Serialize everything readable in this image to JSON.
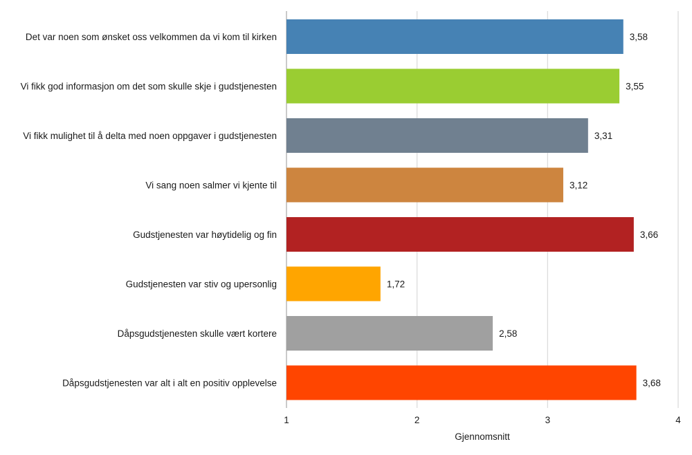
{
  "chart_data": {
    "type": "bar",
    "orientation": "horizontal",
    "categories": [
      "Det var noen som ønsket oss velkommen da vi kom til kirken",
      "Vi fikk god informasjon om det som skulle skje i gudstjenesten",
      "Vi fikk mulighet til å delta med noen oppgaver i gudstjenesten",
      "Vi sang noen salmer vi kjente til",
      "Gudstjenesten var høytidelig og fin",
      "Gudstjenesten var stiv og upersonlig",
      "Dåpsgudstjenesten skulle vært kortere",
      "Dåpsgudstjenesten var alt i alt en positiv opplevelse"
    ],
    "values": [
      3.58,
      3.55,
      3.31,
      3.12,
      3.66,
      1.72,
      2.58,
      3.68
    ],
    "value_labels": [
      "3,58",
      "3,55",
      "3,31",
      "3,12",
      "3,66",
      "1,72",
      "2,58",
      "3,68"
    ],
    "colors": [
      "#4682B4",
      "#9ACD32",
      "#708090",
      "#CD853F",
      "#B22222",
      "#FFA500",
      "#A0A0A0",
      "#FF4500"
    ],
    "xlabel": "Gjennomsnitt",
    "xlim": [
      1,
      4
    ],
    "xticks": [
      1,
      2,
      3,
      4
    ],
    "xtick_labels": [
      "1",
      "2",
      "3",
      "4"
    ],
    "grid": "vertical"
  }
}
